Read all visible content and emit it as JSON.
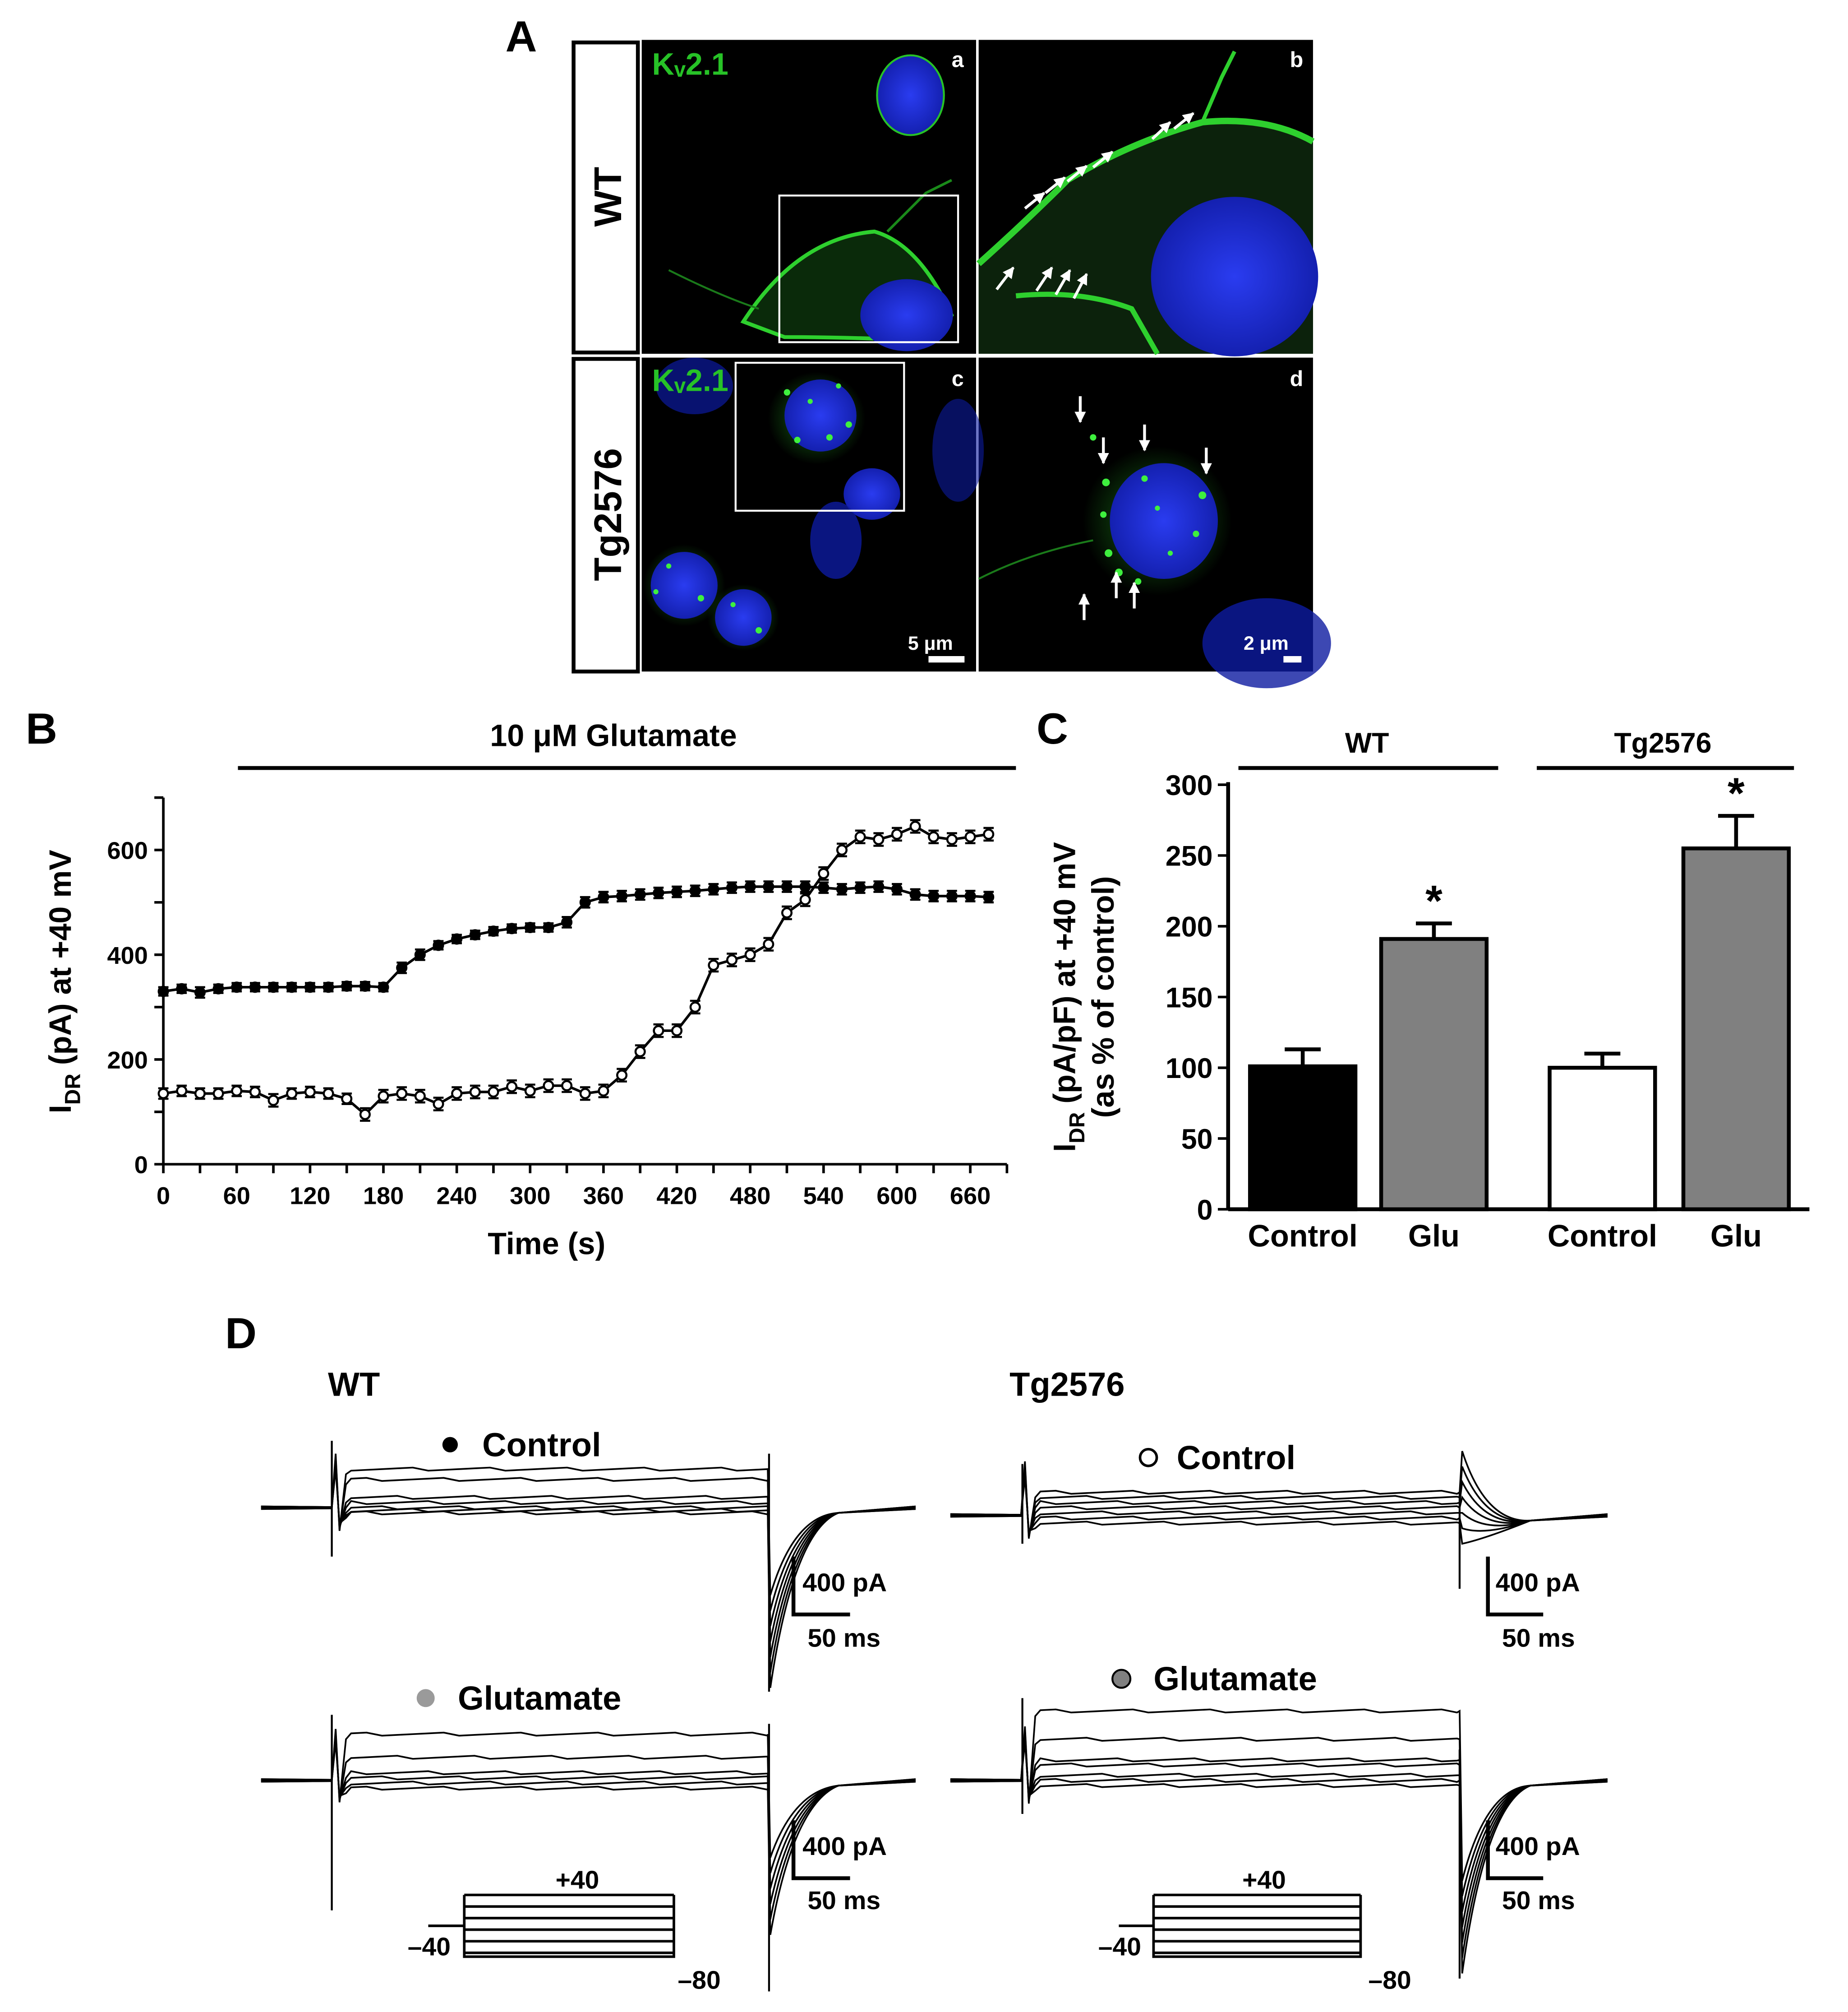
{
  "panels": {
    "A": {
      "letter": "A",
      "row_labels": [
        "WT",
        "Tg2576"
      ],
      "stain": "Kᵥ2.1",
      "sublabels": [
        "a",
        "b",
        "c",
        "d"
      ],
      "scalebars": [
        "5 μm",
        "2 μm"
      ],
      "colors": {
        "membrane": "#27c227",
        "nucleus": "#1c28d8",
        "background": "#000000"
      }
    },
    "B": {
      "letter": "B",
      "treatment": "10 μM Glutamate"
    },
    "C": {
      "letter": "C",
      "groups": [
        "WT",
        "Tg2576"
      ],
      "star": "*"
    },
    "D": {
      "letter": "D",
      "groups": [
        "WT",
        "Tg2576"
      ],
      "conditions": [
        "Control",
        "Glutamate"
      ],
      "scale_current": "400 pA",
      "scale_time": "50 ms",
      "protocol": {
        "top": "+40",
        "hold": "–40",
        "return": "–80"
      },
      "colors": {
        "glutamate_wt": "#9a9a9a",
        "glutamate_tg": "#808080"
      }
    }
  },
  "chart_data": [
    {
      "id": "B",
      "type": "line",
      "title": "",
      "xlabel": "Time (s)",
      "ylabel": "I_DR (pA) at +40 mV",
      "xlim": [
        0,
        690
      ],
      "ylim": [
        0,
        700
      ],
      "xticks": [
        0,
        60,
        120,
        180,
        240,
        300,
        360,
        420,
        480,
        540,
        600,
        660
      ],
      "yticks": [
        0,
        200,
        400,
        600
      ],
      "series": [
        {
          "marker": "filled",
          "x": [
            0,
            15,
            30,
            45,
            60,
            75,
            90,
            105,
            120,
            135,
            150,
            165,
            180,
            195,
            210,
            225,
            240,
            255,
            270,
            285,
            300,
            315,
            330,
            345,
            360,
            375,
            390,
            405,
            420,
            435,
            450,
            465,
            480,
            495,
            510,
            525,
            540,
            555,
            570,
            585,
            600,
            615,
            630,
            645,
            660,
            675
          ],
          "y": [
            330,
            335,
            328,
            335,
            338,
            338,
            338,
            338,
            338,
            338,
            340,
            340,
            338,
            375,
            400,
            418,
            430,
            438,
            445,
            450,
            452,
            452,
            462,
            500,
            510,
            512,
            515,
            518,
            520,
            522,
            525,
            528,
            530,
            530,
            530,
            530,
            528,
            525,
            528,
            530,
            525,
            515,
            512,
            512,
            512,
            510
          ],
          "err": [
            8,
            8,
            10,
            8,
            8,
            8,
            8,
            8,
            8,
            8,
            8,
            8,
            8,
            10,
            10,
            8,
            8,
            8,
            8,
            8,
            8,
            8,
            10,
            10,
            10,
            10,
            10,
            10,
            10,
            10,
            10,
            10,
            10,
            10,
            10,
            10,
            10,
            10,
            10,
            10,
            10,
            10,
            10,
            10,
            10,
            10
          ]
        },
        {
          "marker": "open",
          "x": [
            0,
            15,
            30,
            45,
            60,
            75,
            90,
            105,
            120,
            135,
            150,
            165,
            180,
            195,
            210,
            225,
            240,
            255,
            270,
            285,
            300,
            315,
            330,
            345,
            360,
            375,
            390,
            405,
            420,
            435,
            450,
            465,
            480,
            495,
            510,
            525,
            540,
            555,
            570,
            585,
            600,
            615,
            630,
            645,
            660,
            675
          ],
          "y": [
            135,
            140,
            135,
            135,
            140,
            138,
            122,
            135,
            138,
            135,
            125,
            95,
            130,
            135,
            130,
            115,
            135,
            138,
            138,
            148,
            140,
            150,
            150,
            135,
            140,
            170,
            215,
            255,
            255,
            300,
            380,
            390,
            400,
            420,
            480,
            505,
            555,
            600,
            625,
            620,
            630,
            645,
            625,
            620,
            625,
            630
          ],
          "err": [
            10,
            10,
            10,
            10,
            10,
            10,
            12,
            10,
            10,
            10,
            10,
            12,
            12,
            12,
            12,
            12,
            12,
            12,
            12,
            12,
            12,
            12,
            12,
            12,
            12,
            12,
            12,
            12,
            12,
            12,
            12,
            12,
            12,
            12,
            12,
            12,
            12,
            12,
            12,
            12,
            12,
            12,
            12,
            12,
            12,
            12
          ]
        }
      ]
    },
    {
      "id": "C",
      "type": "bar",
      "title": "",
      "xlabel": "",
      "ylabel": "I_DR (pA/pF) at +40 mV (as % of control)",
      "categories": [
        "Control",
        "Glu",
        "Control",
        "Glu"
      ],
      "values": [
        101,
        191,
        100,
        255
      ],
      "errors": [
        12,
        11,
        10,
        23
      ],
      "fills": [
        "#000000",
        "#808080",
        "#ffffff",
        "#808080"
      ],
      "significant": [
        false,
        true,
        false,
        true
      ],
      "ylim": [
        0,
        300
      ],
      "yticks": [
        0,
        50,
        100,
        150,
        200,
        250,
        300
      ]
    }
  ]
}
